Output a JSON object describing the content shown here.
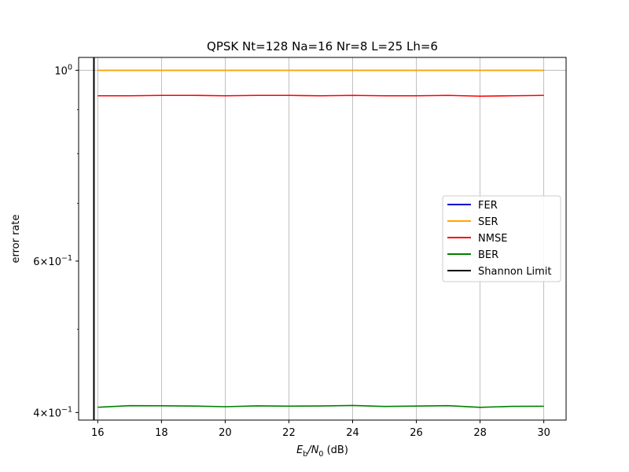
{
  "chart_data": {
    "type": "line",
    "title": "QPSK Nt=128 Na=16 Nr=8 L=25 Lh=6",
    "xlabel": "E_b/N_0 (dB)",
    "ylabel": "error rate",
    "y_scale": "log",
    "xlim": [
      15.4,
      30.7
    ],
    "ylim": [
      0.392,
      1.035
    ],
    "x_ticks": [
      16,
      18,
      20,
      22,
      24,
      26,
      28,
      30
    ],
    "y_ticks": [
      {
        "value": 1.0,
        "label": "10^0"
      },
      {
        "value": 0.6,
        "label": "6×10^-1"
      },
      {
        "value": 0.4,
        "label": "4×10^-1"
      }
    ],
    "grid": "x-major and y at 10^0",
    "legend_position": "center-right",
    "x": [
      16,
      17,
      18,
      19,
      20,
      21,
      22,
      23,
      24,
      25,
      26,
      27,
      28,
      29,
      30
    ],
    "series": [
      {
        "name": "FER",
        "color": "#0000cc",
        "values": [
          1,
          1,
          1,
          1,
          1,
          1,
          1,
          1,
          1,
          1,
          1,
          1,
          1,
          1,
          1
        ]
      },
      {
        "name": "SER",
        "color": "#ffa500",
        "values": [
          1,
          1,
          1,
          1,
          1,
          1,
          1,
          1,
          1,
          1,
          1,
          1,
          1,
          1,
          1
        ]
      },
      {
        "name": "NMSE",
        "color": "#ff0000",
        "values": [
          0.934,
          0.934,
          0.935,
          0.935,
          0.934,
          0.935,
          0.935,
          0.934,
          0.935,
          0.934,
          0.934,
          0.935,
          0.933,
          0.934,
          0.935
        ]
      },
      {
        "name": "BER",
        "color": "#008000",
        "values": [
          0.4057,
          0.4074,
          0.4073,
          0.407,
          0.4063,
          0.4072,
          0.4069,
          0.4071,
          0.4076,
          0.4066,
          0.407,
          0.4074,
          0.4056,
          0.4067,
          0.4068
        ]
      }
    ],
    "vlines": [
      {
        "name": "Shannon Limit",
        "x": 15.88,
        "color": "#000000"
      }
    ]
  }
}
